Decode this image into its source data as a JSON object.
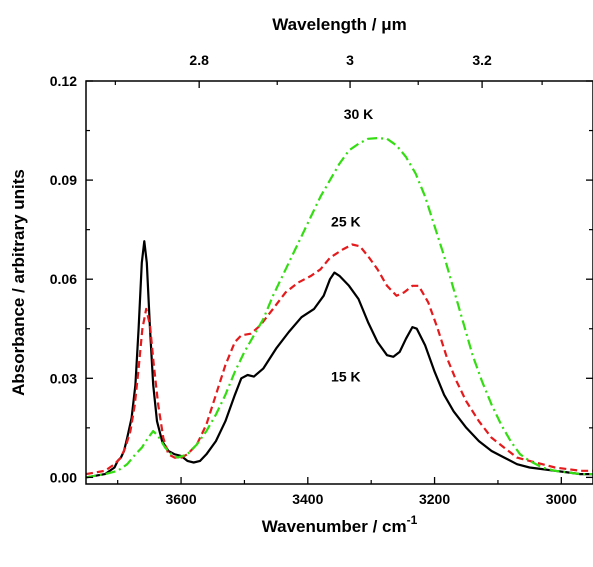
{
  "chart_data": {
    "type": "line",
    "xlabel": "Wavenumber / cm",
    "xlabel_superscript": "-1",
    "top_xlabel": "Wavelength / μm",
    "ylabel": "Absorbance / arbitrary units",
    "xlim": [
      3750,
      2950
    ],
    "ylim": [
      -0.002,
      0.12
    ],
    "x_reversed": true,
    "grid": false,
    "legend": "none",
    "x_ticks": [
      3600,
      3400,
      3200,
      3000
    ],
    "x_tick_labels": [
      "3600",
      "3400",
      "3200",
      "3000"
    ],
    "top_ticks_um": [
      2.8,
      3.0,
      3.2
    ],
    "top_tick_labels": [
      "2.8",
      "3",
      "3.2"
    ],
    "y_ticks": [
      0.0,
      0.03,
      0.06,
      0.09,
      0.12
    ],
    "y_tick_labels": [
      "0.00",
      "0.03",
      "0.06",
      "0.09",
      "0.12"
    ],
    "series": [
      {
        "name": "15 K",
        "color": "#000000",
        "dash": "solid",
        "label_pos": [
          3340,
          0.029
        ],
        "points": [
          [
            3750,
            0.0
          ],
          [
            3720,
            0.001
          ],
          [
            3705,
            0.003
          ],
          [
            3700,
            0.005
          ],
          [
            3695,
            0.006
          ],
          [
            3690,
            0.008
          ],
          [
            3685,
            0.012
          ],
          [
            3678,
            0.018
          ],
          [
            3672,
            0.028
          ],
          [
            3667,
            0.045
          ],
          [
            3662,
            0.065
          ],
          [
            3658,
            0.0715
          ],
          [
            3654,
            0.065
          ],
          [
            3649,
            0.045
          ],
          [
            3644,
            0.028
          ],
          [
            3638,
            0.017
          ],
          [
            3630,
            0.011
          ],
          [
            3620,
            0.008
          ],
          [
            3610,
            0.007
          ],
          [
            3600,
            0.0065
          ],
          [
            3590,
            0.005
          ],
          [
            3580,
            0.0045
          ],
          [
            3570,
            0.005
          ],
          [
            3560,
            0.007
          ],
          [
            3545,
            0.011
          ],
          [
            3530,
            0.017
          ],
          [
            3515,
            0.025
          ],
          [
            3505,
            0.03
          ],
          [
            3495,
            0.031
          ],
          [
            3485,
            0.0305
          ],
          [
            3470,
            0.033
          ],
          [
            3450,
            0.039
          ],
          [
            3430,
            0.044
          ],
          [
            3410,
            0.0485
          ],
          [
            3390,
            0.051
          ],
          [
            3375,
            0.055
          ],
          [
            3365,
            0.06
          ],
          [
            3358,
            0.062
          ],
          [
            3350,
            0.061
          ],
          [
            3335,
            0.058
          ],
          [
            3320,
            0.054
          ],
          [
            3305,
            0.047
          ],
          [
            3290,
            0.041
          ],
          [
            3275,
            0.037
          ],
          [
            3265,
            0.0365
          ],
          [
            3255,
            0.038
          ],
          [
            3245,
            0.042
          ],
          [
            3235,
            0.0455
          ],
          [
            3228,
            0.045
          ],
          [
            3215,
            0.04
          ],
          [
            3200,
            0.032
          ],
          [
            3185,
            0.025
          ],
          [
            3170,
            0.02
          ],
          [
            3150,
            0.015
          ],
          [
            3130,
            0.011
          ],
          [
            3110,
            0.008
          ],
          [
            3090,
            0.006
          ],
          [
            3070,
            0.004
          ],
          [
            3050,
            0.003
          ],
          [
            3030,
            0.0025
          ],
          [
            3010,
            0.002
          ],
          [
            2990,
            0.0015
          ],
          [
            2970,
            0.001
          ],
          [
            2950,
            0.001
          ]
        ]
      },
      {
        "name": "25 K",
        "color": "#e41a1c",
        "dash": "dashed",
        "label_pos": [
          3340,
          0.076
        ],
        "points": [
          [
            3750,
            0.001
          ],
          [
            3720,
            0.002
          ],
          [
            3705,
            0.004
          ],
          [
            3695,
            0.006
          ],
          [
            3688,
            0.009
          ],
          [
            3680,
            0.014
          ],
          [
            3673,
            0.022
          ],
          [
            3667,
            0.033
          ],
          [
            3661,
            0.045
          ],
          [
            3655,
            0.051
          ],
          [
            3649,
            0.046
          ],
          [
            3643,
            0.034
          ],
          [
            3636,
            0.022
          ],
          [
            3628,
            0.012
          ],
          [
            3620,
            0.007
          ],
          [
            3610,
            0.006
          ],
          [
            3600,
            0.006
          ],
          [
            3590,
            0.007
          ],
          [
            3575,
            0.01
          ],
          [
            3560,
            0.016
          ],
          [
            3545,
            0.025
          ],
          [
            3530,
            0.034
          ],
          [
            3515,
            0.041
          ],
          [
            3505,
            0.043
          ],
          [
            3490,
            0.0435
          ],
          [
            3475,
            0.046
          ],
          [
            3455,
            0.051
          ],
          [
            3435,
            0.056
          ],
          [
            3415,
            0.059
          ],
          [
            3395,
            0.061
          ],
          [
            3380,
            0.063
          ],
          [
            3365,
            0.0665
          ],
          [
            3345,
            0.069
          ],
          [
            3330,
            0.0705
          ],
          [
            3318,
            0.07
          ],
          [
            3305,
            0.067
          ],
          [
            3290,
            0.063
          ],
          [
            3275,
            0.058
          ],
          [
            3260,
            0.055
          ],
          [
            3248,
            0.056
          ],
          [
            3235,
            0.058
          ],
          [
            3225,
            0.058
          ],
          [
            3210,
            0.053
          ],
          [
            3195,
            0.045
          ],
          [
            3180,
            0.036
          ],
          [
            3165,
            0.029
          ],
          [
            3150,
            0.023
          ],
          [
            3130,
            0.017
          ],
          [
            3110,
            0.012
          ],
          [
            3090,
            0.009
          ],
          [
            3070,
            0.006
          ],
          [
            3050,
            0.005
          ],
          [
            3030,
            0.004
          ],
          [
            3010,
            0.003
          ],
          [
            2990,
            0.0025
          ],
          [
            2970,
            0.002
          ],
          [
            2950,
            0.002
          ]
        ]
      },
      {
        "name": "30 K",
        "color": "#33dd11",
        "dash": "dash-dot",
        "label_pos": [
          3320,
          0.1085
        ],
        "points": [
          [
            3750,
            0.0
          ],
          [
            3720,
            0.001
          ],
          [
            3700,
            0.002
          ],
          [
            3685,
            0.004
          ],
          [
            3672,
            0.007
          ],
          [
            3662,
            0.009
          ],
          [
            3652,
            0.012
          ],
          [
            3644,
            0.014
          ],
          [
            3636,
            0.0125
          ],
          [
            3625,
            0.009
          ],
          [
            3615,
            0.007
          ],
          [
            3605,
            0.006
          ],
          [
            3590,
            0.007
          ],
          [
            3575,
            0.01
          ],
          [
            3560,
            0.014
          ],
          [
            3545,
            0.019
          ],
          [
            3530,
            0.025
          ],
          [
            3515,
            0.032
          ],
          [
            3500,
            0.038
          ],
          [
            3485,
            0.043
          ],
          [
            3470,
            0.048
          ],
          [
            3455,
            0.055
          ],
          [
            3440,
            0.061
          ],
          [
            3425,
            0.067
          ],
          [
            3410,
            0.073
          ],
          [
            3395,
            0.079
          ],
          [
            3380,
            0.085
          ],
          [
            3365,
            0.09
          ],
          [
            3350,
            0.095
          ],
          [
            3335,
            0.099
          ],
          [
            3320,
            0.101
          ],
          [
            3305,
            0.1025
          ],
          [
            3290,
            0.1027
          ],
          [
            3275,
            0.1025
          ],
          [
            3260,
            0.1005
          ],
          [
            3245,
            0.097
          ],
          [
            3230,
            0.092
          ],
          [
            3215,
            0.085
          ],
          [
            3200,
            0.076
          ],
          [
            3185,
            0.067
          ],
          [
            3170,
            0.057
          ],
          [
            3155,
            0.047
          ],
          [
            3140,
            0.037
          ],
          [
            3125,
            0.029
          ],
          [
            3110,
            0.022
          ],
          [
            3095,
            0.016
          ],
          [
            3080,
            0.011
          ],
          [
            3065,
            0.007
          ],
          [
            3050,
            0.005
          ],
          [
            3030,
            0.003
          ],
          [
            3010,
            0.002
          ],
          [
            2990,
            0.0015
          ],
          [
            2970,
            0.001
          ],
          [
            2950,
            0.001
          ]
        ]
      }
    ]
  }
}
